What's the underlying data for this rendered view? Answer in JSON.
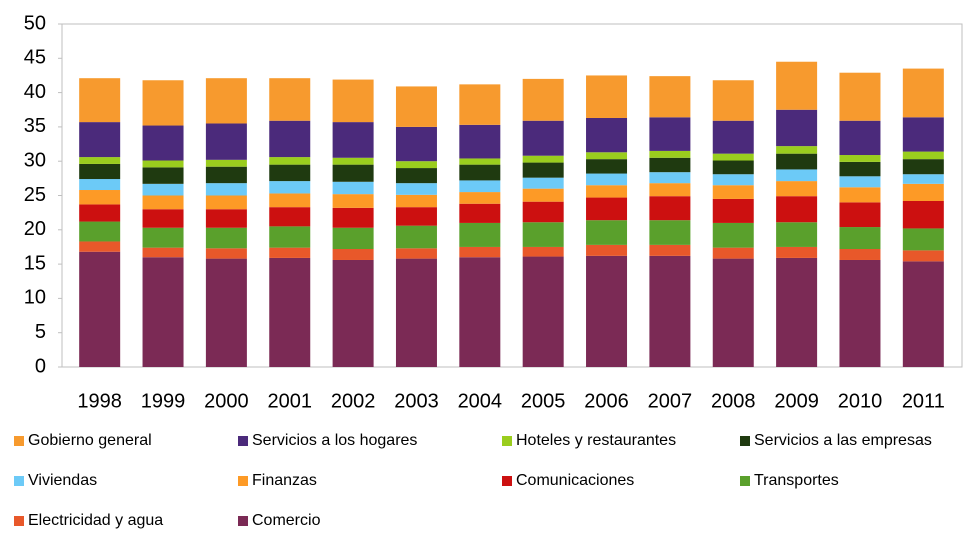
{
  "chart_data": {
    "type": "stacked_bar",
    "categories": [
      "1998",
      "1999",
      "2000",
      "2001",
      "2002",
      "2003",
      "2004",
      "2005",
      "2006",
      "2007",
      "2008",
      "2009",
      "2010",
      "2011"
    ],
    "series": [
      {
        "name": "Gobierno general",
        "color": "#f79a2e",
        "values": [
          6.4,
          6.6,
          6.6,
          6.2,
          6.2,
          5.9,
          5.9,
          6.1,
          6.2,
          6.0,
          5.9,
          7.0,
          7.0,
          7.1
        ]
      },
      {
        "name": "Servicios a los hogares",
        "color": "#4b2a7b",
        "values": [
          5.1,
          5.1,
          5.3,
          5.3,
          5.2,
          5.0,
          4.9,
          5.1,
          5.0,
          4.9,
          4.8,
          5.3,
          5.0,
          5.0
        ]
      },
      {
        "name": "Hoteles y restaurantes",
        "color": "#9acd1e",
        "values": [
          1.0,
          1.0,
          1.0,
          1.1,
          1.0,
          1.0,
          0.9,
          1.0,
          1.0,
          1.0,
          1.0,
          1.1,
          1.0,
          1.1
        ]
      },
      {
        "name": "Servicios a las empresas",
        "color": "#1f3a10",
        "values": [
          2.2,
          2.4,
          2.4,
          2.4,
          2.5,
          2.2,
          2.3,
          2.2,
          2.1,
          2.1,
          2.0,
          2.3,
          2.1,
          2.2
        ]
      },
      {
        "name": "Viviendas",
        "color": "#6ccaf7",
        "values": [
          1.6,
          1.7,
          1.8,
          1.8,
          1.8,
          1.7,
          1.7,
          1.6,
          1.7,
          1.6,
          1.6,
          1.7,
          1.6,
          1.4
        ]
      },
      {
        "name": "Finanzas",
        "color": "#fd9a26",
        "values": [
          2.1,
          2.0,
          2.0,
          2.0,
          2.0,
          1.8,
          1.7,
          1.9,
          1.8,
          1.9,
          2.0,
          2.2,
          2.2,
          2.5
        ]
      },
      {
        "name": "Comunicaciones",
        "color": "#cc1010",
        "values": [
          2.5,
          2.7,
          2.7,
          2.8,
          2.9,
          2.7,
          2.8,
          3.0,
          3.3,
          3.5,
          3.5,
          3.8,
          3.6,
          4.0
        ]
      },
      {
        "name": "Transportes",
        "color": "#5aa02c",
        "values": [
          2.9,
          2.9,
          3.0,
          3.1,
          3.1,
          3.3,
          3.5,
          3.6,
          3.6,
          3.6,
          3.6,
          3.6,
          3.2,
          3.2
        ]
      },
      {
        "name": "Electricidad y agua",
        "color": "#e8582a",
        "values": [
          1.5,
          1.4,
          1.5,
          1.5,
          1.6,
          1.5,
          1.5,
          1.4,
          1.6,
          1.6,
          1.6,
          1.6,
          1.6,
          1.6
        ]
      },
      {
        "name": "Comercio",
        "color": "#7b2a55",
        "values": [
          16.8,
          16.0,
          15.8,
          15.9,
          15.6,
          15.8,
          16.0,
          16.1,
          16.2,
          16.2,
          15.8,
          15.9,
          15.6,
          15.4
        ]
      }
    ],
    "ylim": [
      0,
      50
    ],
    "yticks": [
      0,
      5,
      10,
      15,
      20,
      25,
      30,
      35,
      40,
      45,
      50
    ],
    "grid": false
  }
}
